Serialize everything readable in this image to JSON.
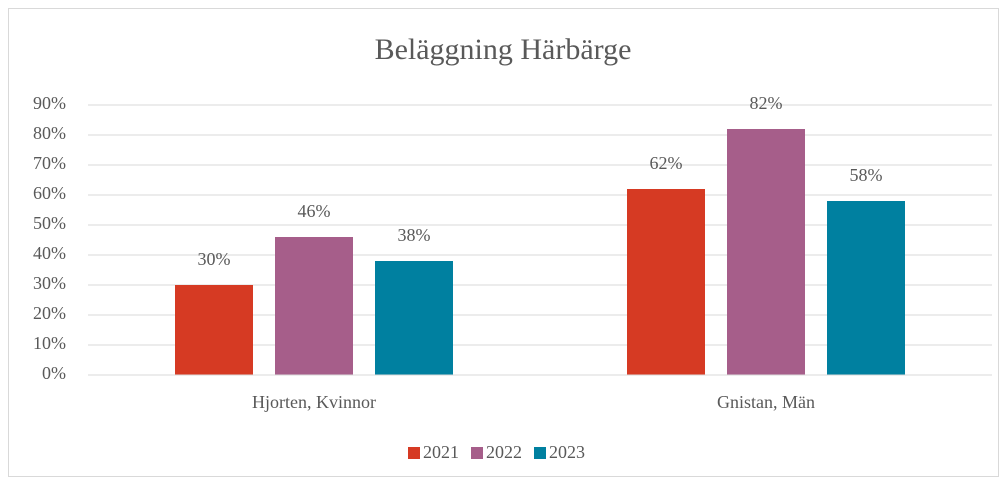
{
  "chart_data": {
    "type": "bar",
    "title": "Beläggning Härbärge",
    "categories": [
      "Hjorten, Kvinnor",
      "Gnistan, Män"
    ],
    "series": [
      {
        "name": "2021",
        "color": "#d63a23",
        "values": [
          30,
          62
        ],
        "value_labels": [
          "30%",
          "62%"
        ]
      },
      {
        "name": "2022",
        "color": "#a65e8a",
        "values": [
          46,
          82
        ],
        "value_labels": [
          "46%",
          "82%"
        ]
      },
      {
        "name": "2023",
        "color": "#0080a0",
        "values": [
          38,
          58
        ],
        "value_labels": [
          "38%",
          "58%"
        ]
      }
    ],
    "ylim": [
      0,
      90
    ],
    "yticks": [
      {
        "value": 0,
        "label": "0%"
      },
      {
        "value": 10,
        "label": "10%"
      },
      {
        "value": 20,
        "label": "20%"
      },
      {
        "value": 30,
        "label": "30%"
      },
      {
        "value": 40,
        "label": "40%"
      },
      {
        "value": 50,
        "label": "50%"
      },
      {
        "value": 60,
        "label": "60%"
      },
      {
        "value": 70,
        "label": "70%"
      },
      {
        "value": 80,
        "label": "80%"
      },
      {
        "value": 90,
        "label": "90%"
      }
    ],
    "grid": true,
    "legend": "bottom"
  }
}
